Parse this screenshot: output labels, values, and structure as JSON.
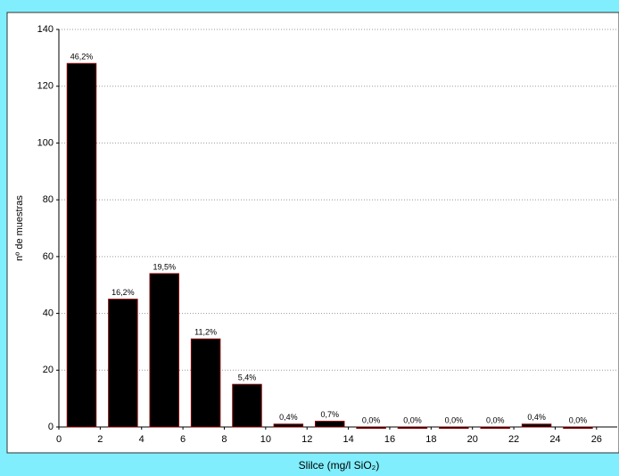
{
  "chart_data": {
    "type": "histogram",
    "x_label": "Slilce   (mg/l SiO₂)",
    "y_label": "nº de muestras",
    "bins": [
      0,
      2,
      4,
      6,
      8,
      10,
      12,
      14,
      16,
      18,
      20,
      22,
      24,
      26
    ],
    "values": [
      128,
      45,
      54,
      31,
      15,
      1,
      2,
      0,
      0,
      0,
      0,
      1,
      0
    ],
    "value_labels": [
      "46,2%",
      "16,2%",
      "19,5%",
      "11,2%",
      "5,4%",
      "0,4%",
      "0,7%",
      "0,0%",
      "0,0%",
      "0,0%",
      "0,0%",
      "0,4%",
      "0,0%"
    ],
    "color": "#000000",
    "edge_color": "#800000",
    "xlim": [
      0,
      27
    ],
    "xticks": [
      0,
      2,
      4,
      6,
      8,
      10,
      12,
      14,
      16,
      18,
      20,
      22,
      24,
      26
    ],
    "ylim": [
      0,
      140
    ],
    "yticks": [
      0,
      20,
      40,
      60,
      80,
      100,
      120,
      140
    ],
    "grid": true
  }
}
